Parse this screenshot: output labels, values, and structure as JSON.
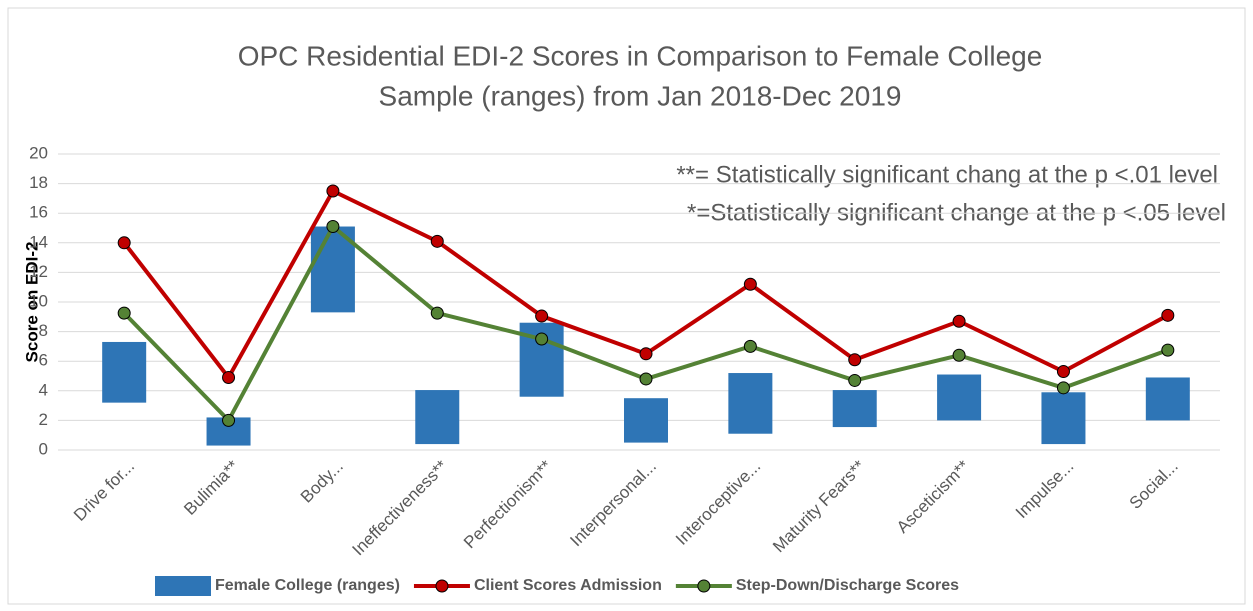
{
  "chart_data": {
    "type": "range-bar-line",
    "title": [
      "OPC Residential EDI-2 Scores in Comparison to Female College",
      "Sample (ranges) from Jan 2018-Dec 2019"
    ],
    "y_label": "Score on EDI-2",
    "annotations": [
      "**= Statistically significant chang at the p <.01 level",
      "*=Statistically significant change at the p <.05 level"
    ],
    "categories": [
      "Drive for...",
      "Bulimia**",
      "Body...",
      "Ineffectiveness**",
      "Perfectionism**",
      "Interpersonal...",
      "Interoceptive...",
      "Maturity Fears**",
      "Asceticism**",
      "Impulse...",
      "Social..."
    ],
    "ylim": [
      0,
      20
    ],
    "yticks": [
      0,
      2,
      4,
      6,
      8,
      10,
      12,
      14,
      16,
      18,
      20
    ],
    "grid": true,
    "series": [
      {
        "name": "Female College (ranges)",
        "kind": "range",
        "color": "#2e75b6",
        "values": [
          [
            3.2,
            7.3
          ],
          [
            0.3,
            2.2
          ],
          [
            9.3,
            15.1
          ],
          [
            0.4,
            4.05
          ],
          [
            3.6,
            8.6
          ],
          [
            0.5,
            3.5
          ],
          [
            1.1,
            5.2
          ],
          [
            1.55,
            4.05
          ],
          [
            2.0,
            5.1
          ],
          [
            0.4,
            3.9
          ],
          [
            2.0,
            4.9
          ]
        ]
      },
      {
        "name": "Client Scores Admission",
        "kind": "line",
        "color": "#c00000",
        "values": [
          14.0,
          4.9,
          17.5,
          14.1,
          9.05,
          6.5,
          11.2,
          6.1,
          8.7,
          5.3,
          9.1
        ]
      },
      {
        "name": "Step-Down/Discharge Scores",
        "kind": "line",
        "color": "#548235",
        "values": [
          9.25,
          2.0,
          15.1,
          9.25,
          7.5,
          4.8,
          7.0,
          4.7,
          6.4,
          4.2,
          6.75
        ]
      }
    ]
  }
}
